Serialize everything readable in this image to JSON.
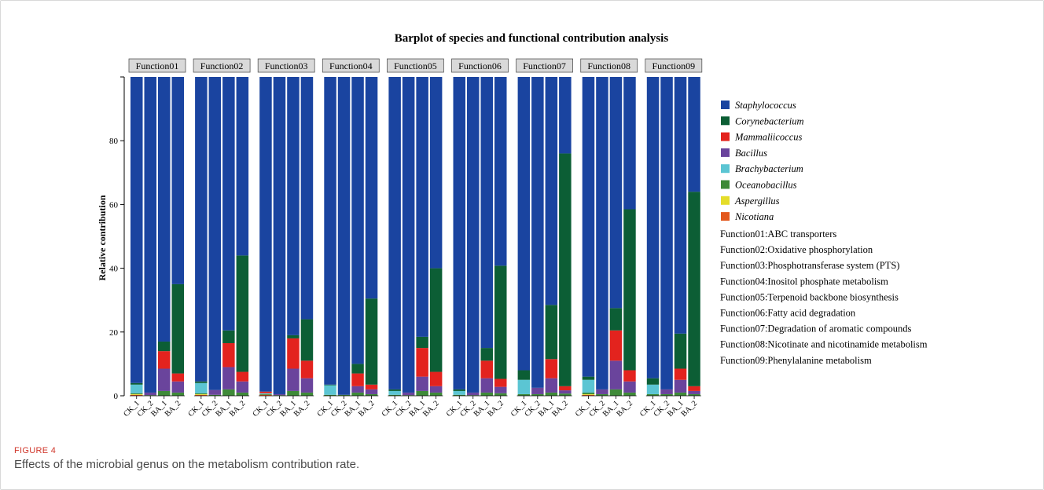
{
  "figure": {
    "label": "FIGURE 4",
    "caption": "Effects of the microbial genus on the metabolism contribution rate."
  },
  "chart_data": {
    "type": "bar",
    "stacked": true,
    "title": "Barplot of species and functional contribution analysis",
    "ylabel": "Relative contribution",
    "ylim": [
      0,
      100
    ],
    "yticks": [
      0,
      20,
      40,
      60,
      80
    ],
    "samples": [
      "CK_1",
      "CK_2",
      "BA_1",
      "BA_2"
    ],
    "genera": [
      {
        "name": "Staphylococcus",
        "color": "#1a44a0"
      },
      {
        "name": "Corynebacterium",
        "color": "#0c5e35"
      },
      {
        "name": "Mammaliicoccus",
        "color": "#e3231e"
      },
      {
        "name": "Bacillus",
        "color": "#6a449c"
      },
      {
        "name": "Brachybacterium",
        "color": "#5bc5d3"
      },
      {
        "name": "Oceanobacillus",
        "color": "#3e8a38"
      },
      {
        "name": "Aspergillus",
        "color": "#e5dd2a"
      },
      {
        "name": "Nicotiana",
        "color": "#e3581e"
      }
    ],
    "function_descriptions": [
      "Function01:ABC transporters",
      "Function02:Oxidative phosphorylation",
      "Function03:Phosphotransferase system (PTS)",
      "Function04:Inositol phosphate metabolism",
      "Function05:Terpenoid backbone biosynthesis",
      "Function06:Fatty acid degradation",
      "Function07:Degradation of aromatic compounds",
      "Function08:Nicotinate and nicotinamide metabolism",
      "Function09:Phenylalanine metabolism"
    ],
    "panels": [
      {
        "name": "Function01",
        "stacks": [
          {
            "Nicotiana": 0.3,
            "Aspergillus": 0.2,
            "Oceanobacillus": 0.3,
            "Brachybacterium": 2.7,
            "Bacillus": 0.0,
            "Mammaliicoccus": 0.0,
            "Corynebacterium": 0.5,
            "Staphylococcus": 96.0
          },
          {
            "Nicotiana": 0.0,
            "Aspergillus": 0.0,
            "Oceanobacillus": 0.2,
            "Brachybacterium": 0.0,
            "Bacillus": 0.8,
            "Mammaliicoccus": 0.0,
            "Corynebacterium": 0.0,
            "Staphylococcus": 99.0
          },
          {
            "Nicotiana": 0.0,
            "Aspergillus": 0.0,
            "Oceanobacillus": 1.5,
            "Brachybacterium": 0.0,
            "Bacillus": 7.0,
            "Mammaliicoccus": 5.5,
            "Corynebacterium": 3.0,
            "Staphylococcus": 83.0
          },
          {
            "Nicotiana": 0.0,
            "Aspergillus": 0.0,
            "Oceanobacillus": 1.0,
            "Brachybacterium": 0.0,
            "Bacillus": 3.5,
            "Mammaliicoccus": 2.5,
            "Corynebacterium": 28.0,
            "Staphylococcus": 65.0
          }
        ]
      },
      {
        "name": "Function02",
        "stacks": [
          {
            "Nicotiana": 0.3,
            "Aspergillus": 0.2,
            "Oceanobacillus": 0.3,
            "Brachybacterium": 3.2,
            "Bacillus": 0.0,
            "Mammaliicoccus": 0.0,
            "Corynebacterium": 0.5,
            "Staphylococcus": 95.5
          },
          {
            "Nicotiana": 0.0,
            "Aspergillus": 0.0,
            "Oceanobacillus": 0.3,
            "Brachybacterium": 0.0,
            "Bacillus": 1.5,
            "Mammaliicoccus": 0.0,
            "Corynebacterium": 0.0,
            "Staphylococcus": 98.2
          },
          {
            "Nicotiana": 0.0,
            "Aspergillus": 0.0,
            "Oceanobacillus": 2.0,
            "Brachybacterium": 0.0,
            "Bacillus": 7.0,
            "Mammaliicoccus": 7.5,
            "Corynebacterium": 4.0,
            "Staphylococcus": 79.5
          },
          {
            "Nicotiana": 0.0,
            "Aspergillus": 0.0,
            "Oceanobacillus": 1.0,
            "Brachybacterium": 0.0,
            "Bacillus": 3.5,
            "Mammaliicoccus": 3.0,
            "Corynebacterium": 36.5,
            "Staphylococcus": 56.0
          }
        ]
      },
      {
        "name": "Function03",
        "stacks": [
          {
            "Nicotiana": 0.3,
            "Aspergillus": 0.0,
            "Oceanobacillus": 0.2,
            "Brachybacterium": 0.3,
            "Bacillus": 0.0,
            "Mammaliicoccus": 0.5,
            "Corynebacterium": 0.0,
            "Staphylococcus": 98.7
          },
          {
            "Nicotiana": 0.0,
            "Aspergillus": 0.0,
            "Oceanobacillus": 0.2,
            "Brachybacterium": 0.0,
            "Bacillus": 0.3,
            "Mammaliicoccus": 0.0,
            "Corynebacterium": 0.0,
            "Staphylococcus": 99.5
          },
          {
            "Nicotiana": 0.0,
            "Aspergillus": 0.0,
            "Oceanobacillus": 1.5,
            "Brachybacterium": 0.0,
            "Bacillus": 7.0,
            "Mammaliicoccus": 9.5,
            "Corynebacterium": 1.0,
            "Staphylococcus": 81.0
          },
          {
            "Nicotiana": 0.0,
            "Aspergillus": 0.0,
            "Oceanobacillus": 1.0,
            "Brachybacterium": 0.0,
            "Bacillus": 4.5,
            "Mammaliicoccus": 5.5,
            "Corynebacterium": 13.0,
            "Staphylococcus": 76.0
          }
        ]
      },
      {
        "name": "Function04",
        "stacks": [
          {
            "Nicotiana": 0.0,
            "Aspergillus": 0.0,
            "Oceanobacillus": 0.3,
            "Brachybacterium": 3.0,
            "Bacillus": 0.0,
            "Mammaliicoccus": 0.0,
            "Corynebacterium": 0.2,
            "Staphylococcus": 96.5
          },
          {
            "Nicotiana": 0.0,
            "Aspergillus": 0.0,
            "Oceanobacillus": 0.3,
            "Brachybacterium": 0.0,
            "Bacillus": 0.0,
            "Mammaliicoccus": 0.0,
            "Corynebacterium": 0.0,
            "Staphylococcus": 99.7
          },
          {
            "Nicotiana": 0.0,
            "Aspergillus": 0.0,
            "Oceanobacillus": 1.0,
            "Brachybacterium": 0.0,
            "Bacillus": 2.0,
            "Mammaliicoccus": 4.0,
            "Corynebacterium": 3.0,
            "Staphylococcus": 90.0
          },
          {
            "Nicotiana": 0.0,
            "Aspergillus": 0.0,
            "Oceanobacillus": 0.5,
            "Brachybacterium": 0.0,
            "Bacillus": 1.5,
            "Mammaliicoccus": 1.5,
            "Corynebacterium": 27.0,
            "Staphylococcus": 69.5
          }
        ]
      },
      {
        "name": "Function05",
        "stacks": [
          {
            "Nicotiana": 0.0,
            "Aspergillus": 0.0,
            "Oceanobacillus": 0.3,
            "Brachybacterium": 1.2,
            "Bacillus": 0.0,
            "Mammaliicoccus": 0.0,
            "Corynebacterium": 0.5,
            "Staphylococcus": 98.0
          },
          {
            "Nicotiana": 0.0,
            "Aspergillus": 0.0,
            "Oceanobacillus": 0.2,
            "Brachybacterium": 0.0,
            "Bacillus": 0.8,
            "Mammaliicoccus": 0.0,
            "Corynebacterium": 0.0,
            "Staphylococcus": 99.0
          },
          {
            "Nicotiana": 0.0,
            "Aspergillus": 0.0,
            "Oceanobacillus": 1.5,
            "Brachybacterium": 0.0,
            "Bacillus": 4.5,
            "Mammaliicoccus": 9.0,
            "Corynebacterium": 3.5,
            "Staphylococcus": 81.5
          },
          {
            "Nicotiana": 0.0,
            "Aspergillus": 0.0,
            "Oceanobacillus": 1.0,
            "Brachybacterium": 0.0,
            "Bacillus": 2.0,
            "Mammaliicoccus": 4.5,
            "Corynebacterium": 32.5,
            "Staphylococcus": 60.0
          }
        ]
      },
      {
        "name": "Function06",
        "stacks": [
          {
            "Nicotiana": 0.0,
            "Aspergillus": 0.0,
            "Oceanobacillus": 0.3,
            "Brachybacterium": 1.2,
            "Bacillus": 0.0,
            "Mammaliicoccus": 0.0,
            "Corynebacterium": 0.5,
            "Staphylococcus": 98.0
          },
          {
            "Nicotiana": 0.0,
            "Aspergillus": 0.0,
            "Oceanobacillus": 0.2,
            "Brachybacterium": 0.0,
            "Bacillus": 0.8,
            "Mammaliicoccus": 0.0,
            "Corynebacterium": 0.0,
            "Staphylococcus": 99.0
          },
          {
            "Nicotiana": 0.0,
            "Aspergillus": 0.0,
            "Oceanobacillus": 1.0,
            "Brachybacterium": 0.0,
            "Bacillus": 4.5,
            "Mammaliicoccus": 5.5,
            "Corynebacterium": 4.0,
            "Staphylococcus": 85.0
          },
          {
            "Nicotiana": 0.0,
            "Aspergillus": 0.0,
            "Oceanobacillus": 0.8,
            "Brachybacterium": 0.0,
            "Bacillus": 2.0,
            "Mammaliicoccus": 2.5,
            "Corynebacterium": 35.5,
            "Staphylococcus": 59.2
          }
        ]
      },
      {
        "name": "Function07",
        "stacks": [
          {
            "Nicotiana": 0.0,
            "Aspergillus": 0.0,
            "Oceanobacillus": 0.5,
            "Brachybacterium": 4.5,
            "Bacillus": 0.0,
            "Mammaliicoccus": 0.0,
            "Corynebacterium": 3.0,
            "Staphylococcus": 92.0
          },
          {
            "Nicotiana": 0.0,
            "Aspergillus": 0.0,
            "Oceanobacillus": 0.5,
            "Brachybacterium": 0.0,
            "Bacillus": 2.0,
            "Mammaliicoccus": 0.0,
            "Corynebacterium": 0.0,
            "Staphylococcus": 97.5
          },
          {
            "Nicotiana": 0.0,
            "Aspergillus": 0.0,
            "Oceanobacillus": 1.0,
            "Brachybacterium": 0.0,
            "Bacillus": 4.5,
            "Mammaliicoccus": 6.0,
            "Corynebacterium": 17.0,
            "Staphylococcus": 71.5
          },
          {
            "Nicotiana": 0.0,
            "Aspergillus": 0.0,
            "Oceanobacillus": 0.7,
            "Brachybacterium": 0.0,
            "Bacillus": 1.0,
            "Mammaliicoccus": 1.3,
            "Corynebacterium": 73.0,
            "Staphylococcus": 24.0
          }
        ]
      },
      {
        "name": "Function08",
        "stacks": [
          {
            "Nicotiana": 0.3,
            "Aspergillus": 0.2,
            "Oceanobacillus": 0.5,
            "Brachybacterium": 4.0,
            "Bacillus": 0.0,
            "Mammaliicoccus": 0.0,
            "Corynebacterium": 1.0,
            "Staphylococcus": 94.0
          },
          {
            "Nicotiana": 0.0,
            "Aspergillus": 0.0,
            "Oceanobacillus": 0.5,
            "Brachybacterium": 0.0,
            "Bacillus": 1.5,
            "Mammaliicoccus": 0.0,
            "Corynebacterium": 0.0,
            "Staphylococcus": 98.0
          },
          {
            "Nicotiana": 0.0,
            "Aspergillus": 0.0,
            "Oceanobacillus": 2.0,
            "Brachybacterium": 0.0,
            "Bacillus": 9.0,
            "Mammaliicoccus": 9.5,
            "Corynebacterium": 7.0,
            "Staphylococcus": 72.5
          },
          {
            "Nicotiana": 0.0,
            "Aspergillus": 0.0,
            "Oceanobacillus": 1.0,
            "Brachybacterium": 0.0,
            "Bacillus": 3.5,
            "Mammaliicoccus": 3.5,
            "Corynebacterium": 50.5,
            "Staphylococcus": 41.5
          }
        ]
      },
      {
        "name": "Function09",
        "stacks": [
          {
            "Nicotiana": 0.0,
            "Aspergillus": 0.0,
            "Oceanobacillus": 0.5,
            "Brachybacterium": 3.0,
            "Bacillus": 0.0,
            "Mammaliicoccus": 0.0,
            "Corynebacterium": 2.0,
            "Staphylococcus": 94.5
          },
          {
            "Nicotiana": 0.0,
            "Aspergillus": 0.0,
            "Oceanobacillus": 0.5,
            "Brachybacterium": 0.0,
            "Bacillus": 1.5,
            "Mammaliicoccus": 0.0,
            "Corynebacterium": 0.0,
            "Staphylococcus": 98.0
          },
          {
            "Nicotiana": 0.0,
            "Aspergillus": 0.0,
            "Oceanobacillus": 1.0,
            "Brachybacterium": 0.0,
            "Bacillus": 4.0,
            "Mammaliicoccus": 3.5,
            "Corynebacterium": 11.0,
            "Staphylococcus": 80.5
          },
          {
            "Nicotiana": 0.0,
            "Aspergillus": 0.0,
            "Oceanobacillus": 0.5,
            "Brachybacterium": 0.0,
            "Bacillus": 1.0,
            "Mammaliicoccus": 1.5,
            "Corynebacterium": 61.0,
            "Staphylococcus": 36.0
          }
        ]
      }
    ]
  }
}
